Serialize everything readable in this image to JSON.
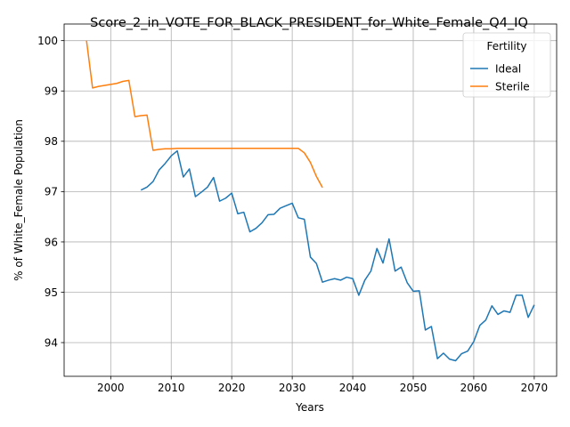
{
  "chart_data": {
    "type": "line",
    "title": "Score_2_in_VOTE_FOR_BLACK_PRESIDENT_for_White_Female_Q4_IQ",
    "xlabel": "Years",
    "ylabel": "% of White_Female Population",
    "xlim": [
      1992.3,
      2073.7
    ],
    "ylim": [
      93.33,
      100.33
    ],
    "xticks": [
      2000,
      2010,
      2020,
      2030,
      2040,
      2050,
      2060,
      2070
    ],
    "yticks": [
      94,
      95,
      96,
      97,
      98,
      99,
      100
    ],
    "grid": true,
    "legend": {
      "title": "Fertility",
      "placement": "top-right"
    },
    "series": [
      {
        "name": "Ideal",
        "color": "#1f77b4",
        "x": [
          2005,
          2006,
          2007,
          2008,
          2009,
          2010,
          2011,
          2012,
          2013,
          2014,
          2015,
          2016,
          2017,
          2018,
          2019,
          2020,
          2021,
          2022,
          2023,
          2024,
          2025,
          2026,
          2027,
          2028,
          2029,
          2030,
          2031,
          2032,
          2033,
          2034,
          2035,
          2036,
          2037,
          2038,
          2039,
          2040,
          2041,
          2042,
          2043,
          2044,
          2045,
          2046,
          2047,
          2048,
          2049,
          2050,
          2051,
          2052,
          2053,
          2054,
          2055,
          2056,
          2057,
          2058,
          2059,
          2060,
          2061,
          2062,
          2063,
          2064,
          2065,
          2066,
          2067,
          2068,
          2069,
          2070
        ],
        "y": [
          97.03,
          97.09,
          97.2,
          97.43,
          97.56,
          97.71,
          97.81,
          97.29,
          97.45,
          96.9,
          96.99,
          97.09,
          97.28,
          96.81,
          96.87,
          96.97,
          96.56,
          96.59,
          96.2,
          96.27,
          96.38,
          96.54,
          96.55,
          96.67,
          96.72,
          96.77,
          96.48,
          96.45,
          95.7,
          95.57,
          95.2,
          95.24,
          95.27,
          95.24,
          95.3,
          95.27,
          94.94,
          95.24,
          95.42,
          95.87,
          95.58,
          96.06,
          95.42,
          95.5,
          95.19,
          95.02,
          95.03,
          94.25,
          94.32,
          93.68,
          93.79,
          93.67,
          93.64,
          93.78,
          93.83,
          94.02,
          94.34,
          94.45,
          94.73,
          94.56,
          94.63,
          94.6,
          94.94,
          94.94,
          94.5,
          94.75
        ]
      },
      {
        "name": "Sterile",
        "color": "#ff7f0e",
        "x": [
          1996,
          1997,
          1998,
          1999,
          2000,
          2001,
          2002,
          2003,
          2004,
          2005,
          2006,
          2007,
          2008,
          2009,
          2010,
          2011,
          2012,
          2013,
          2014,
          2015,
          2016,
          2017,
          2018,
          2019,
          2020,
          2021,
          2022,
          2023,
          2024,
          2025,
          2026,
          2027,
          2028,
          2029,
          2030,
          2031,
          2032,
          2033,
          2034,
          2035
        ],
        "y": [
          100.0,
          99.06,
          99.09,
          99.11,
          99.13,
          99.15,
          99.19,
          99.21,
          98.49,
          98.51,
          98.52,
          97.82,
          97.84,
          97.85,
          97.85,
          97.86,
          97.86,
          97.86,
          97.86,
          97.86,
          97.86,
          97.86,
          97.86,
          97.86,
          97.86,
          97.86,
          97.86,
          97.86,
          97.86,
          97.86,
          97.86,
          97.86,
          97.86,
          97.86,
          97.86,
          97.86,
          97.77,
          97.58,
          97.3,
          97.08
        ]
      }
    ]
  }
}
